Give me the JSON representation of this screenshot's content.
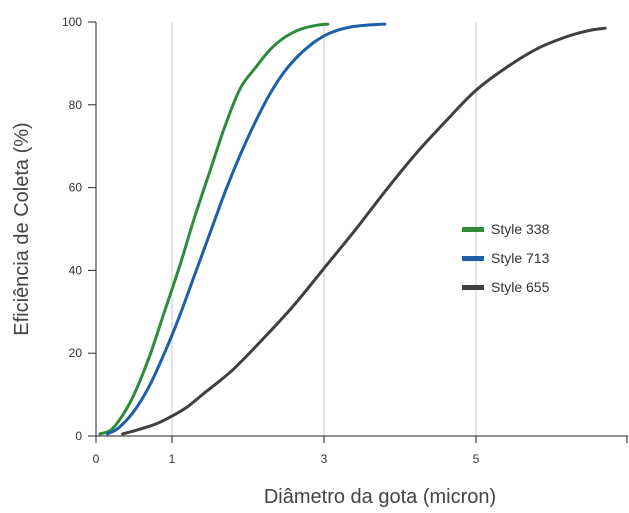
{
  "chart_data": {
    "type": "line",
    "title": "",
    "xlabel": "Diâmetro da gota (micron)",
    "ylabel": "Eficiência de Coleta (%)",
    "xlim": [
      0,
      7
    ],
    "ylim": [
      0,
      100
    ],
    "x_ticks": [
      0,
      1,
      3,
      5
    ],
    "x_tick_labels": [
      "0",
      "1",
      "3",
      "5"
    ],
    "y_ticks": [
      0,
      20,
      40,
      60,
      80,
      100
    ],
    "y_tick_labels": [
      "0",
      "20",
      "40",
      "60",
      "80",
      "100"
    ],
    "vertical_grid_x": [
      1,
      3,
      5
    ],
    "grid": true,
    "legend_position": "right",
    "series": [
      {
        "name": "Style 338",
        "color": "#2e8b3a",
        "points": [
          [
            0.05,
            0.5
          ],
          [
            0.2,
            1.5
          ],
          [
            0.35,
            5
          ],
          [
            0.5,
            10
          ],
          [
            0.7,
            19
          ],
          [
            0.9,
            30
          ],
          [
            1.1,
            41
          ],
          [
            1.3,
            53
          ],
          [
            1.5,
            64
          ],
          [
            1.7,
            75
          ],
          [
            1.9,
            84
          ],
          [
            2.1,
            89
          ],
          [
            2.3,
            93.5
          ],
          [
            2.5,
            96.5
          ],
          [
            2.7,
            98.3
          ],
          [
            2.9,
            99.2
          ],
          [
            3.05,
            99.5
          ]
        ]
      },
      {
        "name": "Style 713",
        "color": "#1f5fa8",
        "points": [
          [
            0.15,
            0.5
          ],
          [
            0.3,
            2
          ],
          [
            0.5,
            6
          ],
          [
            0.7,
            12
          ],
          [
            0.9,
            20
          ],
          [
            1.1,
            29
          ],
          [
            1.3,
            39
          ],
          [
            1.5,
            49
          ],
          [
            1.7,
            59
          ],
          [
            1.9,
            68
          ],
          [
            2.1,
            76
          ],
          [
            2.3,
            83
          ],
          [
            2.5,
            88.5
          ],
          [
            2.7,
            92.5
          ],
          [
            2.9,
            95.5
          ],
          [
            3.1,
            97.5
          ],
          [
            3.35,
            98.8
          ],
          [
            3.6,
            99.3
          ],
          [
            3.8,
            99.5
          ]
        ]
      },
      {
        "name": "Style 655",
        "color": "#3f3f3f",
        "points": [
          [
            0.35,
            0.5
          ],
          [
            0.55,
            1.5
          ],
          [
            0.8,
            3
          ],
          [
            1.0,
            4.8
          ],
          [
            1.2,
            7
          ],
          [
            1.4,
            10
          ],
          [
            1.8,
            16
          ],
          [
            2.2,
            23.5
          ],
          [
            2.6,
            31.5
          ],
          [
            3.0,
            40.5
          ],
          [
            3.4,
            49.5
          ],
          [
            3.8,
            59
          ],
          [
            4.2,
            68
          ],
          [
            4.6,
            76
          ],
          [
            5.0,
            83.5
          ],
          [
            5.4,
            89
          ],
          [
            5.8,
            93.5
          ],
          [
            6.2,
            96.5
          ],
          [
            6.5,
            98
          ],
          [
            6.7,
            98.5
          ]
        ]
      }
    ]
  }
}
